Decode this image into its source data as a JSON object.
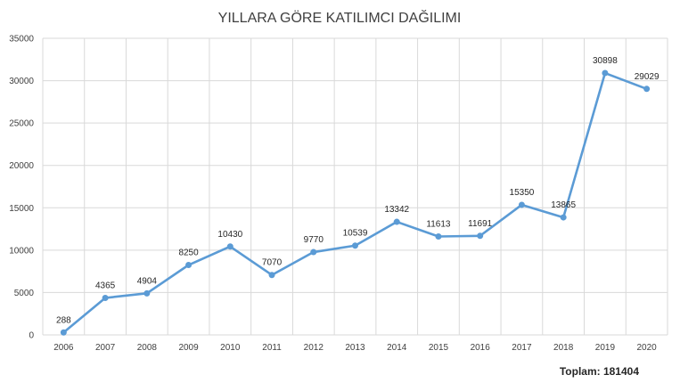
{
  "chart_data": {
    "type": "line",
    "title": "YILLARA GÖRE KATILIMCI DAĞILIMI",
    "categories": [
      "2006",
      "2007",
      "2008",
      "2009",
      "2010",
      "2011",
      "2012",
      "2013",
      "2014",
      "2015",
      "2016",
      "2017",
      "2018",
      "2019",
      "2020"
    ],
    "series": [
      {
        "values": [
          288,
          4365,
          4904,
          8250,
          10430,
          7070,
          9770,
          10539,
          13342,
          11613,
          11691,
          15350,
          13865,
          30898,
          29029
        ],
        "color": "#5b9bd5"
      }
    ],
    "ylim": [
      0,
      35000
    ],
    "yticks": [
      0,
      5000,
      10000,
      15000,
      20000,
      25000,
      30000,
      35000
    ],
    "xlabel": "",
    "ylabel": "",
    "grid": true,
    "legend": "none",
    "data_labels": true,
    "footer_text": "Toplam: 181404"
  }
}
